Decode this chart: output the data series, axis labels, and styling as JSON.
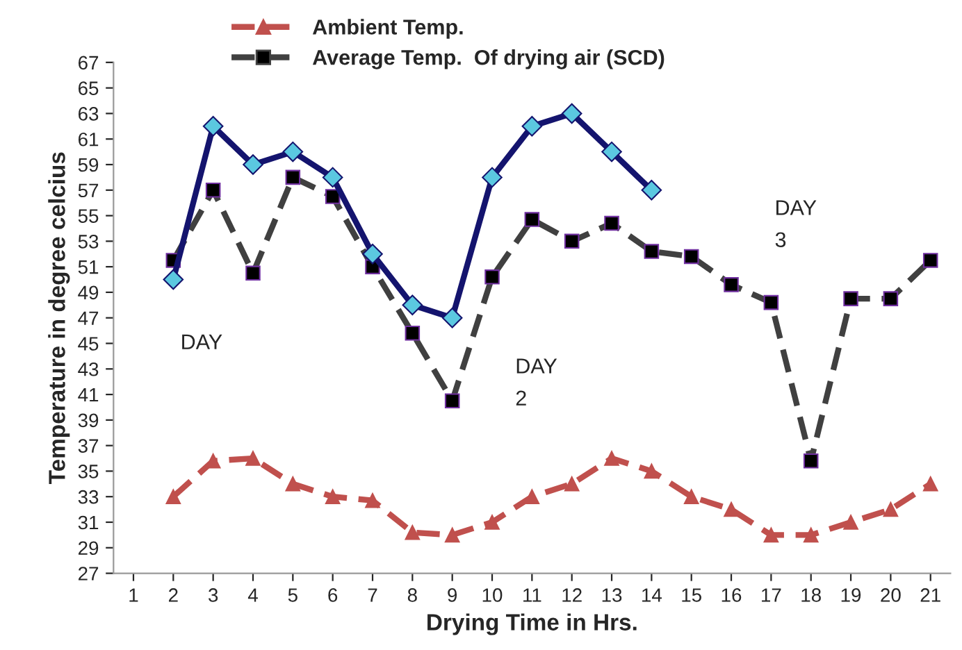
{
  "chart_data": {
    "type": "line",
    "xlabel": "Drying Time in Hrs.",
    "ylabel": "Temperature in degree celcius",
    "categories": [
      "1",
      "2",
      "3",
      "4",
      "5",
      "6",
      "7",
      "8",
      "9",
      "10",
      "11",
      "12",
      "13",
      "14",
      "15",
      "16",
      "17",
      "18",
      "19",
      "20",
      "21"
    ],
    "series": [
      {
        "name": "Ambient Temp.",
        "color": "#c0504d",
        "marker": "triangle",
        "line_style": "dashed",
        "values": [
          null,
          33,
          35.8,
          36,
          34,
          33,
          32.7,
          30.2,
          30,
          31,
          33,
          34,
          36,
          35,
          33,
          32,
          30,
          30,
          31,
          32,
          34
        ]
      },
      {
        "name": "Average Temp.  Of drying air (SCD)",
        "color": "#404040",
        "marker": "square",
        "line_style": "dashed",
        "values": [
          null,
          51.5,
          57,
          50.5,
          58,
          56.5,
          51,
          45.8,
          40.5,
          50.2,
          54.7,
          53,
          54.4,
          52.2,
          51.8,
          49.6,
          48.2,
          35.8,
          48.5,
          48.5,
          51.5
        ]
      },
      {
        "color": "#14146e",
        "marker": "diamond",
        "line_style": "solid",
        "values": [
          null,
          50,
          62,
          59,
          60,
          58,
          52,
          48,
          47,
          58,
          62,
          63,
          60,
          57,
          null,
          null,
          null,
          null,
          null,
          null,
          null
        ]
      }
    ],
    "ylim": [
      27,
      67
    ],
    "yticks": [
      27,
      29,
      31,
      33,
      35,
      37,
      39,
      41,
      43,
      45,
      47,
      49,
      51,
      53,
      55,
      57,
      59,
      61,
      63,
      65,
      67
    ],
    "annotations": [
      "DAY",
      "DAY\n2",
      "DAY\n3"
    ],
    "grid": false,
    "legend": "top"
  }
}
